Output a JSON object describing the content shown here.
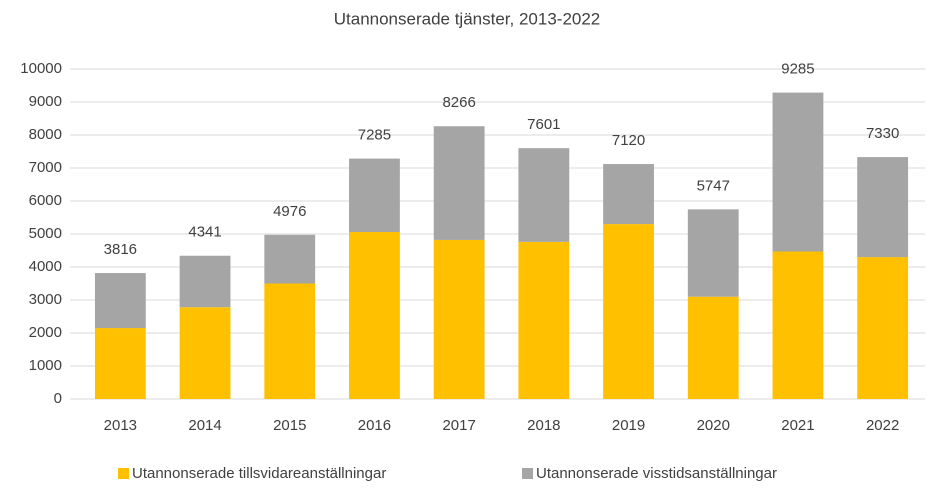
{
  "chart_data": {
    "type": "stacked_bar",
    "title": "Utannonserade tjänster, 2013-2022",
    "categories": [
      "2013",
      "2014",
      "2015",
      "2016",
      "2017",
      "2018",
      "2019",
      "2020",
      "2021",
      "2022"
    ],
    "series": [
      {
        "name": "Utannonserade tillsvidareanställningar",
        "color": "#ffc000",
        "values": [
          2150,
          2780,
          3500,
          5060,
          4820,
          4760,
          5300,
          3100,
          4470,
          4300
        ]
      },
      {
        "name": "Utannonserade visstidsanställningar",
        "color": "#a5a5a5",
        "values": [
          1666,
          1561,
          1476,
          2225,
          3446,
          2841,
          1820,
          2647,
          4815,
          3030
        ]
      }
    ],
    "totals": [
      3816,
      4341,
      4976,
      7285,
      8266,
      7601,
      7120,
      5747,
      9285,
      7330
    ],
    "ylim": [
      0,
      10000
    ],
    "yticks": [
      0,
      1000,
      2000,
      3000,
      4000,
      5000,
      6000,
      7000,
      8000,
      9000,
      10000
    ],
    "grid": true,
    "legend": "bottom"
  }
}
